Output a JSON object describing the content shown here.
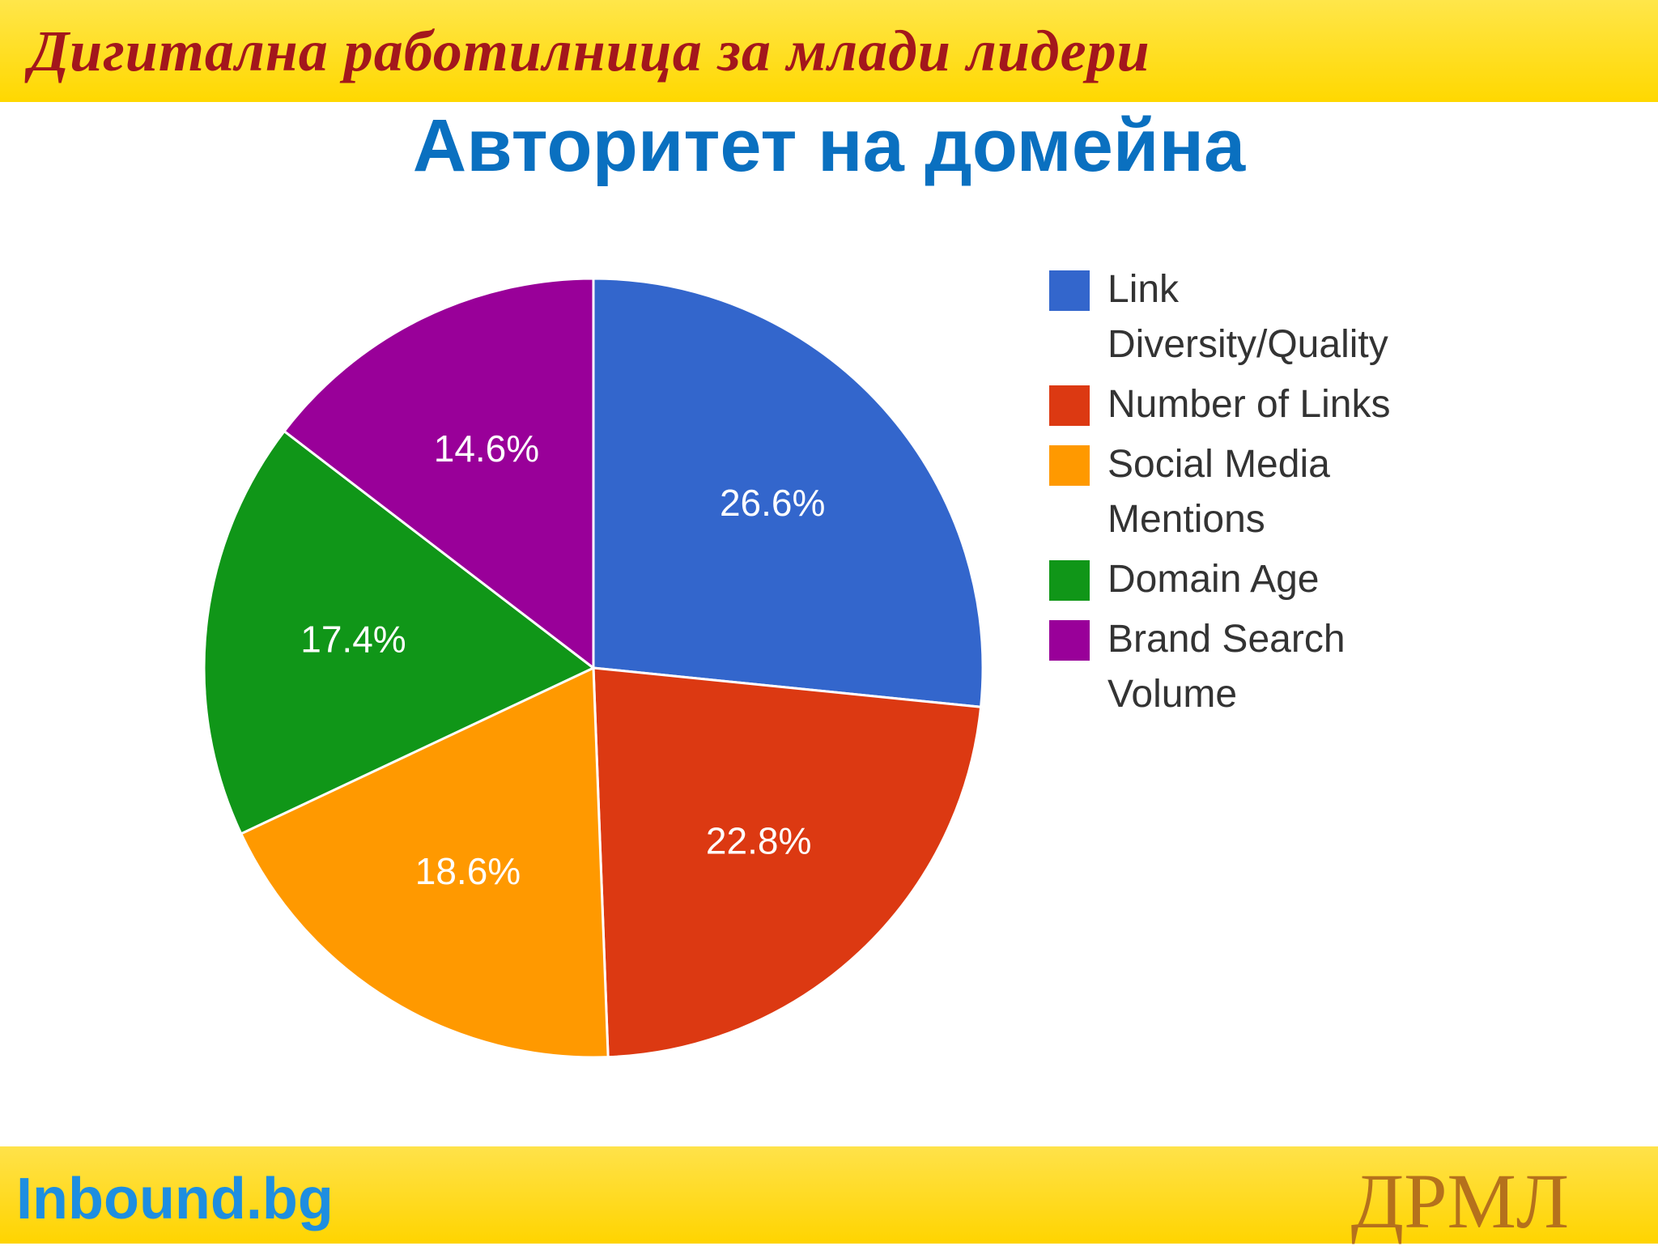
{
  "header": {
    "title": "Дигитална работилница за млади лидери"
  },
  "chart_data": {
    "type": "pie",
    "title": "Авторитет на домейна",
    "categories": [
      "Link Diversity/Quality",
      "Number of Links",
      "Social Media Mentions",
      "Domain Age",
      "Brand Search Volume"
    ],
    "values": [
      26.6,
      22.8,
      18.6,
      17.4,
      14.6
    ],
    "value_labels": [
      "26.6%",
      "22.8%",
      "18.6%",
      "17.4%",
      "14.6%"
    ],
    "colors": [
      "#3366cc",
      "#dc3912",
      "#ff9900",
      "#109618",
      "#990099"
    ],
    "legend": "right"
  },
  "footer": {
    "left": "Inbound.bg",
    "right": "ДРМЛ"
  }
}
